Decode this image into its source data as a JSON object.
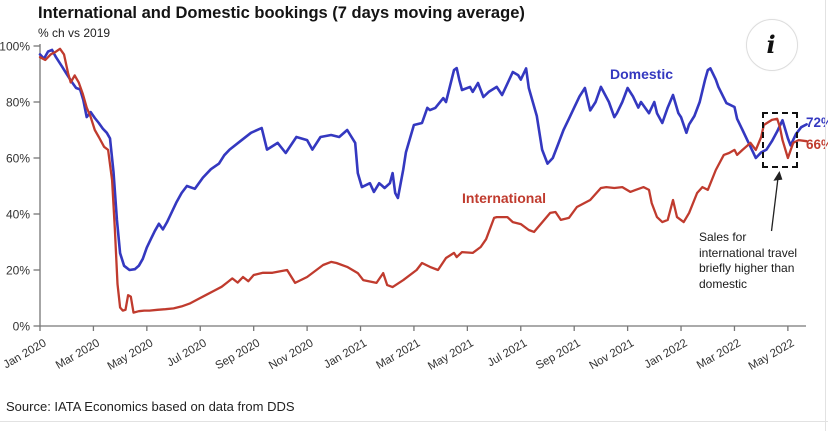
{
  "header": {
    "title": "International and Domestic bookings (7 days moving average)",
    "unit_label": "% ch vs 2019",
    "info_icon": "i"
  },
  "annotation": {
    "text": "Sales for\ninternational travel\nbriefly higher than\ndomestic"
  },
  "footer": {
    "source": "Source: IATA Economics based on data from DDS"
  },
  "colors": {
    "domestic": "#3438c0",
    "international": "#c03b2e",
    "axis": "#777777",
    "tick_text": "#333333"
  },
  "chart_data": {
    "type": "line",
    "title": "International and Domestic bookings (7 days moving average)",
    "ylabel": "% ch vs 2019",
    "grid": false,
    "legend_position": "inline-labels",
    "axis_color": "#777777",
    "x_axis": {
      "unit": "months since Jan 2020",
      "range": [
        0,
        28.7
      ],
      "tick_interval_months": 2,
      "tick_labels": [
        "Jan 2020",
        "Mar 2020",
        "May 2020",
        "Jul 2020",
        "Sep 2020",
        "Nov 2020",
        "Jan 2021",
        "Mar 2021",
        "May 2021",
        "Jul 2021",
        "Sep 2021",
        "Nov 2021",
        "Jan 2022",
        "Mar 2022",
        "May 2022"
      ]
    },
    "y_axis": {
      "range": [
        0,
        100
      ],
      "ticks": [
        100,
        80,
        60,
        40,
        20,
        0
      ],
      "tick_labels": [
        "100%",
        "80%",
        "60%",
        "40%",
        "20%",
        "0%"
      ]
    },
    "series": [
      {
        "name": "Domestic",
        "label": "Domestic",
        "color": "#3438c0",
        "width": 2.6,
        "end_label": "72%",
        "end_value": 72,
        "points": [
          [
            0,
            97
          ],
          [
            0.15,
            95.5
          ],
          [
            0.3,
            98
          ],
          [
            0.45,
            98.6
          ],
          [
            0.6,
            96
          ],
          [
            0.8,
            93
          ],
          [
            1.0,
            90
          ],
          [
            1.2,
            87
          ],
          [
            1.35,
            85
          ],
          [
            1.5,
            84.5
          ],
          [
            1.62,
            80.7
          ],
          [
            1.75,
            74.6
          ],
          [
            1.9,
            76.4
          ],
          [
            2.05,
            74.3
          ],
          [
            2.2,
            72.5
          ],
          [
            2.35,
            70.5
          ],
          [
            2.5,
            69
          ],
          [
            2.62,
            67
          ],
          [
            2.75,
            55
          ],
          [
            2.88,
            38
          ],
          [
            3.0,
            26
          ],
          [
            3.15,
            21.5
          ],
          [
            3.35,
            20
          ],
          [
            3.55,
            20.3
          ],
          [
            3.7,
            21.5
          ],
          [
            3.85,
            24
          ],
          [
            4.0,
            28
          ],
          [
            4.15,
            31
          ],
          [
            4.3,
            34
          ],
          [
            4.45,
            36.5
          ],
          [
            4.6,
            34.5
          ],
          [
            4.75,
            37
          ],
          [
            4.9,
            40
          ],
          [
            5.1,
            44
          ],
          [
            5.3,
            47.5
          ],
          [
            5.5,
            50
          ],
          [
            5.8,
            49
          ],
          [
            6.1,
            53
          ],
          [
            6.4,
            56
          ],
          [
            6.7,
            58
          ],
          [
            6.9,
            61
          ],
          [
            7.1,
            63
          ],
          [
            7.5,
            66
          ],
          [
            7.9,
            69
          ],
          [
            8.3,
            70.7
          ],
          [
            8.5,
            63
          ],
          [
            8.9,
            65.4
          ],
          [
            9.2,
            61.8
          ],
          [
            9.6,
            67.5
          ],
          [
            10.0,
            66.4
          ],
          [
            10.2,
            63
          ],
          [
            10.5,
            67.5
          ],
          [
            10.9,
            68.2
          ],
          [
            11.2,
            67.5
          ],
          [
            11.5,
            70
          ],
          [
            11.8,
            65.4
          ],
          [
            11.9,
            54.6
          ],
          [
            12.05,
            49.6
          ],
          [
            12.35,
            51
          ],
          [
            12.5,
            47.9
          ],
          [
            12.7,
            51
          ],
          [
            12.9,
            49.3
          ],
          [
            13.1,
            51
          ],
          [
            13.2,
            54.6
          ],
          [
            13.3,
            47.5
          ],
          [
            13.4,
            45.7
          ],
          [
            13.6,
            56
          ],
          [
            13.7,
            62
          ],
          [
            14.0,
            71.8
          ],
          [
            14.3,
            72.5
          ],
          [
            14.5,
            77.9
          ],
          [
            14.6,
            77.1
          ],
          [
            14.8,
            77.9
          ],
          [
            15.1,
            81.4
          ],
          [
            15.2,
            80
          ],
          [
            15.5,
            91.4
          ],
          [
            15.6,
            92.1
          ],
          [
            15.7,
            87.9
          ],
          [
            15.8,
            84.3
          ],
          [
            16.1,
            85.4
          ],
          [
            16.2,
            83.6
          ],
          [
            16.4,
            86.8
          ],
          [
            16.6,
            81.8
          ],
          [
            16.8,
            83.6
          ],
          [
            17.1,
            85.4
          ],
          [
            17.3,
            82.5
          ],
          [
            17.7,
            90.7
          ],
          [
            17.9,
            89.6
          ],
          [
            18.0,
            88
          ],
          [
            18.2,
            92
          ],
          [
            18.3,
            85
          ],
          [
            18.6,
            75
          ],
          [
            18.8,
            63
          ],
          [
            19.0,
            58
          ],
          [
            19.2,
            60
          ],
          [
            19.4,
            65
          ],
          [
            19.6,
            70
          ],
          [
            19.8,
            74
          ],
          [
            20.0,
            78
          ],
          [
            20.2,
            82
          ],
          [
            20.4,
            85
          ],
          [
            20.6,
            77
          ],
          [
            20.8,
            80
          ],
          [
            21.0,
            85.4
          ],
          [
            21.3,
            80
          ],
          [
            21.5,
            74.6
          ],
          [
            21.6,
            76
          ],
          [
            21.8,
            80
          ],
          [
            22.0,
            85
          ],
          [
            22.2,
            82
          ],
          [
            22.4,
            78
          ],
          [
            22.5,
            80
          ],
          [
            22.8,
            76
          ],
          [
            23.0,
            80
          ],
          [
            23.1,
            76
          ],
          [
            23.3,
            72.5
          ],
          [
            23.5,
            78
          ],
          [
            23.7,
            82.5
          ],
          [
            23.9,
            76
          ],
          [
            24.0,
            74.6
          ],
          [
            24.2,
            69
          ],
          [
            24.3,
            72
          ],
          [
            24.5,
            75
          ],
          [
            24.7,
            80
          ],
          [
            24.9,
            88
          ],
          [
            25.0,
            91.4
          ],
          [
            25.1,
            92
          ],
          [
            25.3,
            88
          ],
          [
            25.4,
            85.4
          ],
          [
            25.7,
            79.6
          ],
          [
            26.0,
            78.2
          ],
          [
            26.1,
            74
          ],
          [
            26.3,
            70
          ],
          [
            26.5,
            66
          ],
          [
            26.7,
            62
          ],
          [
            26.8,
            60
          ],
          [
            27.0,
            62
          ],
          [
            27.2,
            63
          ],
          [
            27.4,
            66
          ],
          [
            27.6,
            69.5
          ],
          [
            27.8,
            73.5
          ],
          [
            28.0,
            67
          ],
          [
            28.1,
            64.5
          ],
          [
            28.3,
            68.5
          ],
          [
            28.5,
            71
          ],
          [
            28.7,
            72
          ]
        ]
      },
      {
        "name": "International",
        "label": "International",
        "color": "#c03b2e",
        "width": 2.3,
        "end_label": "66%",
        "end_value": 66,
        "points": [
          [
            0,
            96
          ],
          [
            0.2,
            95
          ],
          [
            0.4,
            97
          ],
          [
            0.6,
            98
          ],
          [
            0.75,
            99
          ],
          [
            0.9,
            97
          ],
          [
            1.05,
            90.4
          ],
          [
            1.15,
            87
          ],
          [
            1.3,
            89.5
          ],
          [
            1.45,
            87
          ],
          [
            1.6,
            83
          ],
          [
            1.75,
            78
          ],
          [
            1.9,
            74.6
          ],
          [
            2.05,
            70
          ],
          [
            2.2,
            67.5
          ],
          [
            2.4,
            64
          ],
          [
            2.55,
            62.9
          ],
          [
            2.7,
            52
          ],
          [
            2.8,
            35
          ],
          [
            2.9,
            15
          ],
          [
            3.0,
            6.6
          ],
          [
            3.1,
            5.5
          ],
          [
            3.2,
            5.8
          ],
          [
            3.3,
            11
          ],
          [
            3.4,
            10.5
          ],
          [
            3.5,
            4.8
          ],
          [
            3.7,
            5.3
          ],
          [
            3.9,
            5.5
          ],
          [
            4.1,
            5.5
          ],
          [
            4.4,
            5.8
          ],
          [
            4.7,
            6
          ],
          [
            5.0,
            6.3
          ],
          [
            5.3,
            7
          ],
          [
            5.6,
            8
          ],
          [
            5.9,
            9.5
          ],
          [
            6.2,
            11
          ],
          [
            6.5,
            12.5
          ],
          [
            6.8,
            14
          ],
          [
            7.0,
            15.5
          ],
          [
            7.2,
            17
          ],
          [
            7.4,
            15.5
          ],
          [
            7.6,
            17.5
          ],
          [
            7.8,
            16
          ],
          [
            8.0,
            18.2
          ],
          [
            8.35,
            19
          ],
          [
            8.7,
            19
          ],
          [
            9.25,
            20
          ],
          [
            9.55,
            15.4
          ],
          [
            10.0,
            17.5
          ],
          [
            10.6,
            21.8
          ],
          [
            10.9,
            22.9
          ],
          [
            11.1,
            22.5
          ],
          [
            11.5,
            21.1
          ],
          [
            11.9,
            18.9
          ],
          [
            12.1,
            16.4
          ],
          [
            12.6,
            15.4
          ],
          [
            12.85,
            18.9
          ],
          [
            13.0,
            14.6
          ],
          [
            13.2,
            13.9
          ],
          [
            13.6,
            16.4
          ],
          [
            14.1,
            20
          ],
          [
            14.3,
            22.5
          ],
          [
            14.6,
            21.1
          ],
          [
            14.9,
            20
          ],
          [
            15.2,
            24.3
          ],
          [
            15.5,
            26.1
          ],
          [
            15.6,
            24.6
          ],
          [
            15.8,
            26.4
          ],
          [
            16.2,
            26.1
          ],
          [
            16.5,
            28.2
          ],
          [
            16.7,
            31
          ],
          [
            17.0,
            38.6
          ],
          [
            17.1,
            38.9
          ],
          [
            17.5,
            38.9
          ],
          [
            17.7,
            37.1
          ],
          [
            18.0,
            36.4
          ],
          [
            18.3,
            34.3
          ],
          [
            18.5,
            33.6
          ],
          [
            19.1,
            40.4
          ],
          [
            19.3,
            40.7
          ],
          [
            19.5,
            37.9
          ],
          [
            19.8,
            38.6
          ],
          [
            20.1,
            42.5
          ],
          [
            20.6,
            45
          ],
          [
            21.0,
            49.3
          ],
          [
            21.2,
            49.6
          ],
          [
            21.5,
            49.3
          ],
          [
            21.8,
            49.6
          ],
          [
            22.1,
            47.9
          ],
          [
            22.3,
            48.6
          ],
          [
            22.6,
            49.6
          ],
          [
            22.8,
            48.6
          ],
          [
            22.9,
            43.9
          ],
          [
            23.1,
            38.9
          ],
          [
            23.3,
            37.1
          ],
          [
            23.5,
            37.9
          ],
          [
            23.7,
            45
          ],
          [
            23.85,
            38.9
          ],
          [
            24.1,
            37.1
          ],
          [
            24.3,
            40.4
          ],
          [
            24.6,
            47.5
          ],
          [
            24.8,
            49.6
          ],
          [
            25.0,
            48.6
          ],
          [
            25.3,
            55.7
          ],
          [
            25.6,
            61.1
          ],
          [
            25.8,
            61.8
          ],
          [
            26.0,
            62.9
          ],
          [
            26.1,
            61.1
          ],
          [
            26.3,
            62.9
          ],
          [
            26.6,
            65.4
          ],
          [
            26.8,
            62.9
          ],
          [
            27.0,
            67.5
          ],
          [
            27.1,
            71.8
          ],
          [
            27.4,
            73.6
          ],
          [
            27.6,
            74
          ],
          [
            27.7,
            71
          ],
          [
            27.8,
            66.4
          ],
          [
            28.0,
            60
          ],
          [
            28.2,
            65.4
          ],
          [
            28.4,
            66.4
          ],
          [
            28.7,
            66
          ]
        ]
      }
    ]
  }
}
